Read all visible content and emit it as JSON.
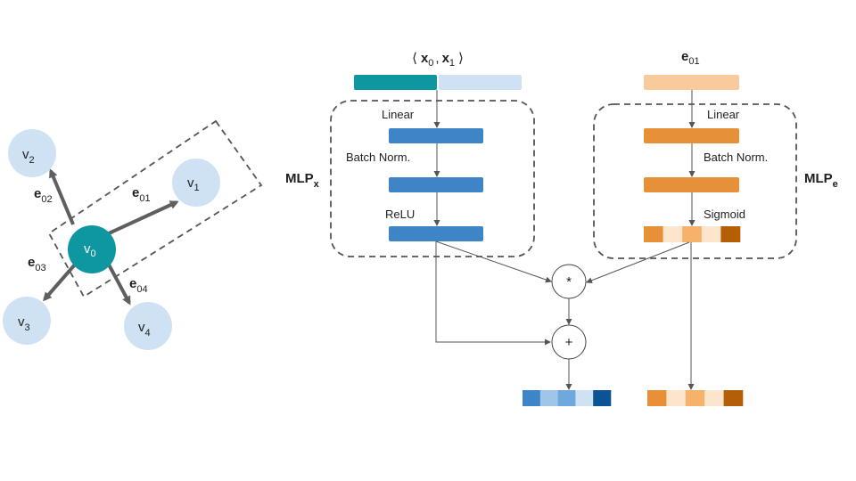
{
  "graph": {
    "nodes": [
      {
        "id": "v0",
        "base": "v",
        "sub": "0"
      },
      {
        "id": "v1",
        "base": "v",
        "sub": "1"
      },
      {
        "id": "v2",
        "base": "v",
        "sub": "2"
      },
      {
        "id": "v3",
        "base": "v",
        "sub": "3"
      },
      {
        "id": "v4",
        "base": "v",
        "sub": "4"
      }
    ],
    "edges": [
      {
        "id": "e01",
        "base": "e",
        "sub": "01"
      },
      {
        "id": "e02",
        "base": "e",
        "sub": "02"
      },
      {
        "id": "e03",
        "base": "e",
        "sub": "03"
      },
      {
        "id": "e04",
        "base": "e",
        "sub": "04"
      }
    ]
  },
  "mlp_x": {
    "input_label": {
      "open": "⟨",
      "x0": "x",
      "x0_sub": "0",
      "comma": ",",
      "x1": "x",
      "x1_sub": "1",
      "close": "⟩"
    },
    "label": {
      "base": "MLP",
      "sub": "x"
    },
    "layers": [
      "Linear",
      "Batch Norm.",
      "ReLU"
    ]
  },
  "mlp_e": {
    "input_label": {
      "base": "e",
      "sub": "01"
    },
    "label": {
      "base": "MLP",
      "sub": "e"
    },
    "layers": [
      "Linear",
      "Batch Norm.",
      "Sigmoid"
    ]
  },
  "operators": {
    "multiply": "*",
    "add": "+"
  },
  "colors": {
    "node_center": "#0e97a0",
    "node_other": "#cfe2f3",
    "blue_layer": "#3d85c6",
    "orange_layer": "#e69138",
    "x0_bar": "#0e97a0",
    "x1_bar": "#cfe2f3",
    "e01_bar": "#f9cb9c",
    "sigmoid_segments": [
      "#e69138",
      "#fce5cd",
      "#f6b26b",
      "#fce5cd",
      "#b45f06"
    ],
    "output_x_segments": [
      "#3d85c6",
      "#9fc5e8",
      "#6fa8dc",
      "#cfe2f3",
      "#0b5394"
    ],
    "output_e_segments": [
      "#e69138",
      "#fce5cd",
      "#f6b26b",
      "#fce5cd",
      "#b45f06"
    ]
  }
}
